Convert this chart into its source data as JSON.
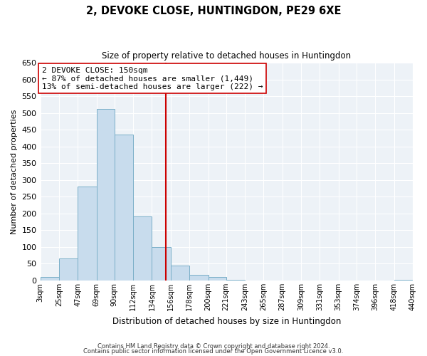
{
  "title": "2, DEVOKE CLOSE, HUNTINGDON, PE29 6XE",
  "subtitle": "Size of property relative to detached houses in Huntingdon",
  "xlabel": "Distribution of detached houses by size in Huntingdon",
  "ylabel": "Number of detached properties",
  "bar_color": "#c8dced",
  "bar_edge_color": "#7aafc8",
  "bins": [
    3,
    25,
    47,
    69,
    90,
    112,
    134,
    156,
    178,
    200,
    221,
    243,
    265,
    287,
    309,
    331,
    353,
    374,
    396,
    418,
    440
  ],
  "counts": [
    10,
    65,
    280,
    513,
    435,
    192,
    100,
    45,
    18,
    10,
    3,
    1,
    0,
    0,
    0,
    0,
    0,
    0,
    0,
    2
  ],
  "property_size": 150,
  "vline_color": "#cc0000",
  "annotation_line1": "2 DEVOKE CLOSE: 150sqm",
  "annotation_line2": "← 87% of detached houses are smaller (1,449)",
  "annotation_line3": "13% of semi-detached houses are larger (222) →",
  "annotation_box_facecolor": "#ffffff",
  "annotation_box_edgecolor": "#cc0000",
  "ylim": [
    0,
    650
  ],
  "yticks": [
    0,
    50,
    100,
    150,
    200,
    250,
    300,
    350,
    400,
    450,
    500,
    550,
    600,
    650
  ],
  "footer_line1": "Contains HM Land Registry data © Crown copyright and database right 2024.",
  "footer_line2": "Contains public sector information licensed under the Open Government Licence v3.0.",
  "plot_bg_color": "#edf2f7",
  "grid_color": "#ffffff",
  "tick_labels": [
    "3sqm",
    "25sqm",
    "47sqm",
    "69sqm",
    "90sqm",
    "112sqm",
    "134sqm",
    "156sqm",
    "178sqm",
    "200sqm",
    "221sqm",
    "243sqm",
    "265sqm",
    "287sqm",
    "309sqm",
    "331sqm",
    "353sqm",
    "374sqm",
    "396sqm",
    "418sqm",
    "440sqm"
  ]
}
